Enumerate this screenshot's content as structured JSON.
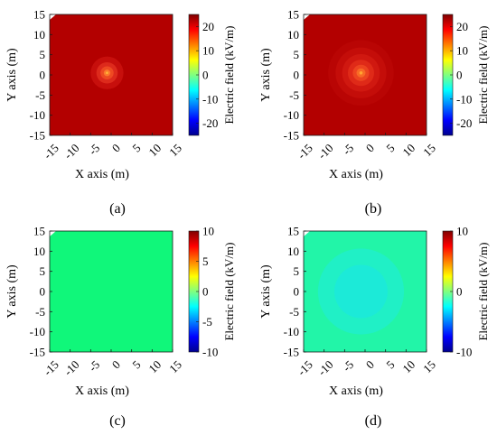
{
  "panels": [
    {
      "caption": "(a)",
      "xlabel": "X axis  (m)",
      "ylabel": "Y axis  (m)",
      "colorbar_label": "Electric field  (kV/m)",
      "colorbar_ticks": [
        "20",
        "10",
        "0",
        "-10",
        "-20"
      ],
      "colorbar_tick_values": [
        20,
        10,
        0,
        -10,
        -20
      ],
      "colorbar_range": [
        -25,
        25
      ],
      "background_color": "#b30000",
      "field_center": [
        -1,
        0.5
      ],
      "rings": [
        {
          "radius": 4.0,
          "color": "#c70f0c"
        },
        {
          "radius": 2.6,
          "color": "#dd2a1c"
        },
        {
          "radius": 1.6,
          "color": "#ee4a22"
        },
        {
          "radius": 0.8,
          "color": "#fb7a2c"
        },
        {
          "radius": 0.3,
          "color": "#ffb43a"
        }
      ]
    },
    {
      "caption": "(b)",
      "xlabel": "X axis  (m)",
      "ylabel": "Y axis  (m)",
      "colorbar_label": "Electric field  (kV/m)",
      "colorbar_ticks": [
        "20",
        "10",
        "0",
        "-10",
        "-20"
      ],
      "colorbar_tick_values": [
        20,
        10,
        0,
        -10,
        -20
      ],
      "colorbar_range": [
        -25,
        25
      ],
      "background_color": "#b30000",
      "field_center": [
        -1,
        0.5
      ],
      "rings": [
        {
          "radius": 8.0,
          "color": "#b90504"
        },
        {
          "radius": 6.2,
          "color": "#c40d09"
        },
        {
          "radius": 4.6,
          "color": "#d01810"
        },
        {
          "radius": 3.2,
          "color": "#df2a18"
        },
        {
          "radius": 2.0,
          "color": "#ed4420"
        },
        {
          "radius": 1.1,
          "color": "#f86a26"
        },
        {
          "radius": 0.4,
          "color": "#ffa432"
        }
      ]
    },
    {
      "caption": "(c)",
      "xlabel": "X axis  (m)",
      "ylabel": "Y axis  (m)",
      "colorbar_label": "Electric field  (kV/m)",
      "colorbar_ticks": [
        "10",
        "5",
        "0",
        "-5",
        "-10"
      ],
      "colorbar_tick_values": [
        10,
        5,
        0,
        -5,
        -10
      ],
      "colorbar_range": [
        -10,
        10
      ],
      "background_color": "#10f77a",
      "field_center": [
        0,
        0
      ],
      "rings": []
    },
    {
      "caption": "(d)",
      "xlabel": "X axis  (m)",
      "ylabel": "Y axis  (m)",
      "colorbar_label": "Electric field  (kV/m)",
      "colorbar_ticks": [
        "10",
        "0",
        "-10"
      ],
      "colorbar_tick_values": [
        10,
        0,
        -10
      ],
      "colorbar_range": [
        -10,
        10
      ],
      "background_color": "#22f5a8",
      "field_center": [
        -1,
        0
      ],
      "rings": [
        {
          "radius": 10.5,
          "color": "#20f0c6"
        },
        {
          "radius": 6.5,
          "color": "#1cead8"
        }
      ]
    }
  ],
  "chart_data": [
    {
      "type": "heatmap",
      "xlabel": "X axis  (m)",
      "ylabel": "Y axis  (m)",
      "xlim": [
        -15,
        15
      ],
      "ylim": [
        -15,
        15
      ],
      "x_ticks": [
        -15,
        -10,
        -5,
        0,
        5,
        10,
        15
      ],
      "y_ticks": [
        15,
        10,
        5,
        0,
        -5,
        -10,
        -15
      ],
      "colorbar_label": "Electric field  (kV/m)",
      "colorbar_range": [
        -25,
        25
      ],
      "peak_location": [
        -1,
        0.5
      ]
    },
    {
      "type": "heatmap",
      "xlabel": "X axis  (m)",
      "ylabel": "Y axis  (m)",
      "xlim": [
        -15,
        15
      ],
      "ylim": [
        -15,
        15
      ],
      "x_ticks": [
        -15,
        -10,
        -5,
        0,
        5,
        10,
        15
      ],
      "y_ticks": [
        15,
        10,
        5,
        0,
        -5,
        -10,
        -15
      ],
      "colorbar_label": "Electric field  (kV/m)",
      "colorbar_range": [
        -25,
        25
      ],
      "peak_location": [
        -1,
        0.5
      ]
    },
    {
      "type": "heatmap",
      "xlabel": "X axis  (m)",
      "ylabel": "Y axis  (m)",
      "xlim": [
        -15,
        15
      ],
      "ylim": [
        -15,
        15
      ],
      "x_ticks": [
        -15,
        -10,
        -5,
        0,
        5,
        10,
        15
      ],
      "y_ticks": [
        15,
        10,
        5,
        0,
        -5,
        -10,
        -15
      ],
      "colorbar_label": "Electric field  (kV/m)",
      "colorbar_range": [
        -10,
        10
      ]
    },
    {
      "type": "heatmap",
      "xlabel": "X axis  (m)",
      "ylabel": "Y axis  (m)",
      "xlim": [
        -15,
        15
      ],
      "ylim": [
        -15,
        15
      ],
      "x_ticks": [
        -15,
        -10,
        -5,
        0,
        5,
        10,
        15
      ],
      "y_ticks": [
        15,
        10,
        5,
        0,
        -5,
        -10,
        -15
      ],
      "colorbar_label": "Electric field  (kV/m)",
      "colorbar_range": [
        -10,
        10
      ],
      "peak_location": [
        -1,
        0
      ]
    }
  ],
  "axis": {
    "x_ticks": [
      "-15",
      "-10",
      "-5",
      "0",
      "5",
      "10",
      "15"
    ],
    "x_tick_values": [
      -15,
      -10,
      -5,
      0,
      5,
      10,
      15
    ],
    "y_ticks": [
      "15",
      "10",
      "5",
      "0",
      "-5",
      "-10",
      "-15"
    ],
    "y_tick_values": [
      15,
      10,
      5,
      0,
      -5,
      -10,
      -15
    ],
    "range": [
      -15,
      15
    ]
  },
  "colormap": [
    "#00008f",
    "#0000ff",
    "#0080ff",
    "#00ffff",
    "#80ff80",
    "#ffff00",
    "#ff8000",
    "#ff0000",
    "#800000"
  ]
}
